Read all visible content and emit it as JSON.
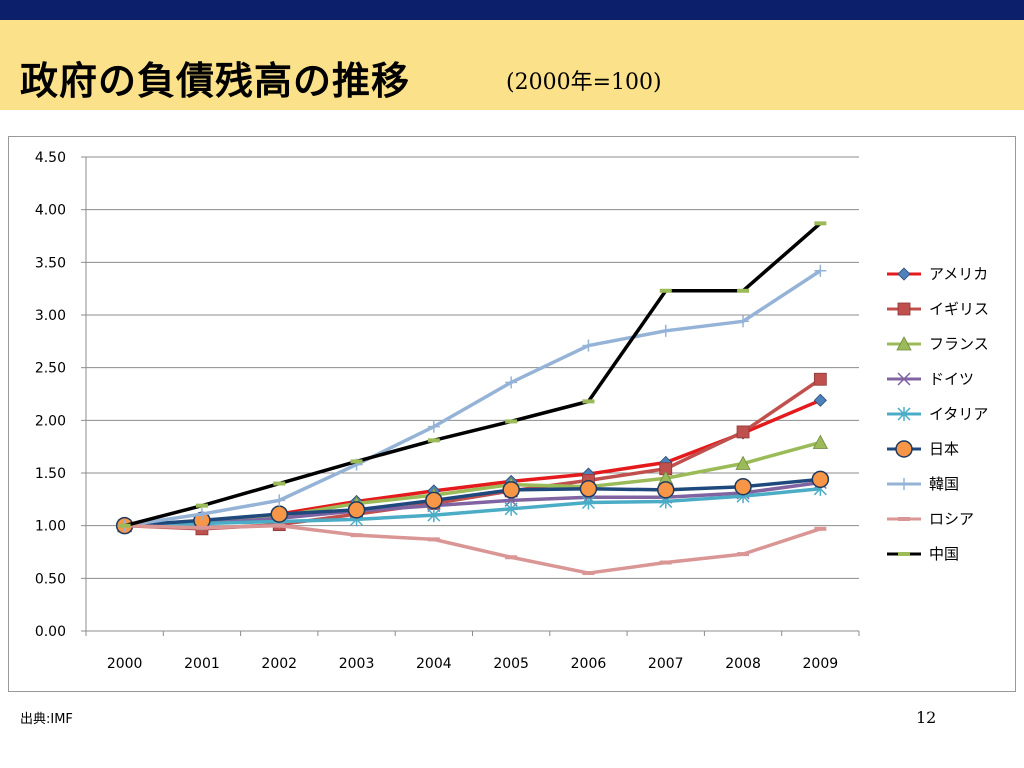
{
  "slide": {
    "title": "政府の負債残高の推移",
    "subtitle": "(2000年=100)",
    "source": "出典:IMF",
    "page_number": "12",
    "colors": {
      "top_bar": "#0b1f6b",
      "title_band": "#fbe28a"
    }
  },
  "chart_data": {
    "type": "line",
    "title": "",
    "xlabel": "",
    "ylabel": "",
    "categories": [
      "2000",
      "2001",
      "2002",
      "2003",
      "2004",
      "2005",
      "2006",
      "2007",
      "2008",
      "2009"
    ],
    "ylim": [
      0,
      4.5
    ],
    "yticks": [
      "0.00",
      "0.50",
      "1.00",
      "1.50",
      "2.00",
      "2.50",
      "3.00",
      "3.50",
      "4.00",
      "4.50"
    ],
    "grid": true,
    "legend_position": "right",
    "series": [
      {
        "name": "アメリカ",
        "color": "#e41a1c",
        "marker": "diamond",
        "marker_color": "#4f81bd",
        "values": [
          1.0,
          1.04,
          1.11,
          1.23,
          1.33,
          1.42,
          1.49,
          1.6,
          1.88,
          2.19
        ]
      },
      {
        "name": "イギリス",
        "color": "#c0504d",
        "marker": "square",
        "marker_color": "#c0504d",
        "values": [
          1.0,
          0.97,
          1.01,
          1.11,
          1.21,
          1.33,
          1.43,
          1.54,
          1.89,
          2.39
        ]
      },
      {
        "name": "フランス",
        "color": "#9bbb59",
        "marker": "triangle",
        "marker_color": "#9bbb59",
        "values": [
          1.0,
          1.03,
          1.09,
          1.21,
          1.29,
          1.39,
          1.37,
          1.45,
          1.59,
          1.79
        ]
      },
      {
        "name": "ドイツ",
        "color": "#8064a2",
        "marker": "x",
        "marker_color": "#8064a2",
        "values": [
          1.0,
          1.02,
          1.07,
          1.14,
          1.19,
          1.24,
          1.27,
          1.27,
          1.31,
          1.41
        ]
      },
      {
        "name": "イタリア",
        "color": "#4bacc6",
        "marker": "star",
        "marker_color": "#4bacc6",
        "values": [
          1.0,
          1.02,
          1.04,
          1.06,
          1.1,
          1.16,
          1.22,
          1.23,
          1.28,
          1.35
        ]
      },
      {
        "name": "日本",
        "color": "#1f497d",
        "marker": "circle",
        "marker_color": "#f79646",
        "values": [
          1.0,
          1.05,
          1.11,
          1.15,
          1.24,
          1.34,
          1.35,
          1.34,
          1.37,
          1.44
        ]
      },
      {
        "name": "韓国",
        "color": "#95b3d7",
        "marker": "plus",
        "marker_color": "#95b3d7",
        "values": [
          1.0,
          1.11,
          1.24,
          1.58,
          1.94,
          2.36,
          2.71,
          2.85,
          2.94,
          3.42
        ]
      },
      {
        "name": "ロシア",
        "color": "#d99694",
        "marker": "dash",
        "marker_color": "#d99694",
        "values": [
          1.0,
          0.98,
          1.0,
          0.91,
          0.87,
          0.7,
          0.55,
          0.65,
          0.73,
          0.97
        ]
      },
      {
        "name": "中国",
        "color": "#000000",
        "marker": "dash",
        "marker_color": "#9bbb59",
        "values": [
          1.0,
          1.19,
          1.4,
          1.61,
          1.81,
          1.99,
          2.18,
          3.23,
          3.23,
          3.87
        ]
      }
    ]
  }
}
